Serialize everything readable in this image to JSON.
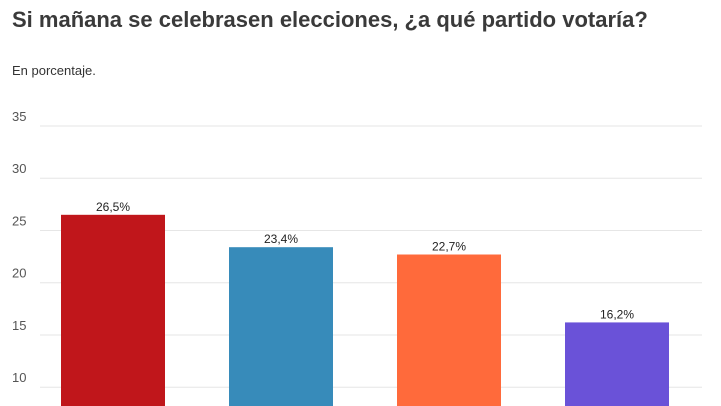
{
  "chart_title": "Si mañana se celebrasen elecciones, ¿a qué partido votaría?",
  "chart_subtitle": "En porcentaje.",
  "chart_data": {
    "type": "bar",
    "title": "Si mañana se celebrasen elecciones, ¿a qué partido votaría?",
    "subtitle": "En porcentaje.",
    "xlabel": "",
    "ylabel": "",
    "categories": [
      "",
      "",
      "",
      ""
    ],
    "values": [
      26.5,
      23.4,
      22.7,
      16.2
    ],
    "data_labels": [
      "26,5%",
      "23,4%",
      "22,7%",
      "16,2%"
    ],
    "colors": [
      "#c0161b",
      "#378bba",
      "#ff6a3b",
      "#6a52d8"
    ],
    "yticks": [
      "10",
      "15",
      "20",
      "25",
      "30",
      "35"
    ],
    "ytick_values": [
      10,
      15,
      20,
      25,
      30,
      35
    ],
    "ylim": [
      8.2,
      35
    ],
    "grid": true,
    "legend": "none"
  }
}
